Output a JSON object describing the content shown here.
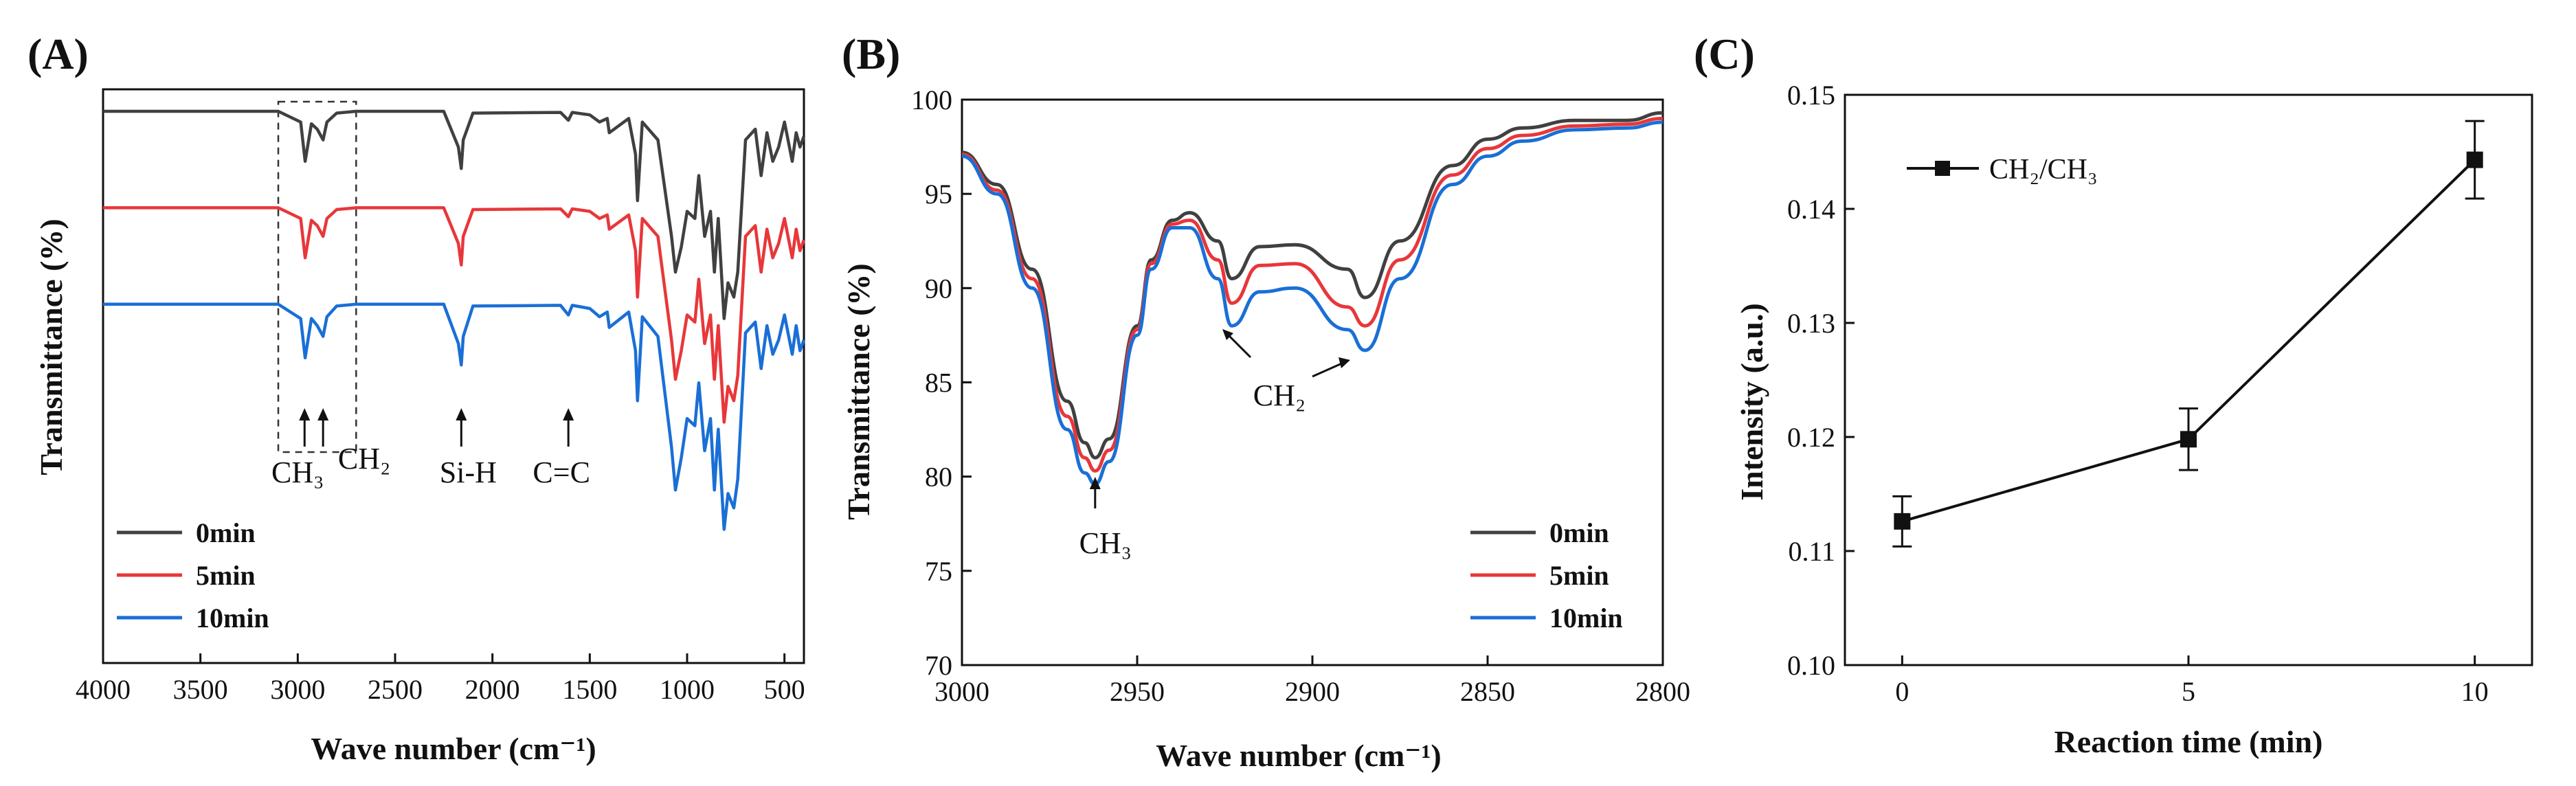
{
  "figure": {
    "panels": [
      "(A)",
      "(B)",
      "(C)"
    ]
  },
  "chart_data": [
    {
      "panel": "(A)",
      "type": "line",
      "title": "",
      "xlabel": "Wave number (cm⁻¹)",
      "ylabel": "Transmittance (%)",
      "xlim": [
        4000,
        400
      ],
      "xticks": [
        4000,
        3500,
        3000,
        2500,
        2000,
        1500,
        1000,
        500
      ],
      "y_ticks_shown": false,
      "legend_position": "bottom-left",
      "colors": [
        "#404040",
        "#e8373a",
        "#1a6fd6"
      ],
      "series": [
        {
          "name": "0min",
          "baseline": 0.0,
          "x": [
            4000,
            3100,
            2985,
            2962,
            2930,
            2900,
            2870,
            2850,
            2800,
            2700,
            2250,
            2175,
            2160,
            2150,
            2100,
            1650,
            1610,
            1590,
            1500,
            1450,
            1410,
            1400,
            1300,
            1265,
            1255,
            1230,
            1150,
            1080,
            1060,
            1030,
            1000,
            960,
            940,
            910,
            880,
            860,
            840,
            810,
            790,
            760,
            740,
            700,
            650,
            620,
            590,
            560,
            530,
            500,
            460,
            440,
            420,
            400
          ],
          "y": [
            0.0,
            0.0,
            -3.0,
            -14.0,
            -3.5,
            -5.0,
            -8.0,
            -3.0,
            -0.5,
            0.0,
            0.0,
            -10.0,
            -16.0,
            -8.0,
            -0.5,
            -0.3,
            -2.5,
            -0.3,
            -1.0,
            -3.0,
            -2.0,
            -6.0,
            -2.0,
            -12.0,
            -25.0,
            -3.0,
            -8.0,
            -35.0,
            -45.0,
            -38.0,
            -28.0,
            -30.0,
            -18.0,
            -35.0,
            -28.0,
            -45.0,
            -30.0,
            -58.0,
            -48.0,
            -52.0,
            -45.0,
            -8.0,
            -5.0,
            -18.0,
            -6.0,
            -14.0,
            -10.0,
            -3.0,
            -14.0,
            -6.0,
            -10.0,
            -7.0
          ]
        },
        {
          "name": "5min",
          "baseline": -27.0,
          "x": [
            4000,
            3100,
            2985,
            2962,
            2930,
            2900,
            2870,
            2850,
            2800,
            2700,
            2250,
            2175,
            2160,
            2150,
            2100,
            1650,
            1610,
            1590,
            1500,
            1450,
            1410,
            1400,
            1300,
            1265,
            1255,
            1230,
            1150,
            1080,
            1060,
            1030,
            1000,
            960,
            940,
            910,
            880,
            860,
            840,
            810,
            790,
            760,
            740,
            700,
            650,
            620,
            590,
            560,
            530,
            500,
            460,
            440,
            420,
            400
          ],
          "y": [
            0.0,
            0.0,
            -3.0,
            -14.0,
            -3.5,
            -5.0,
            -8.0,
            -3.0,
            -0.5,
            0.0,
            0.0,
            -10.0,
            -16.0,
            -8.0,
            -0.5,
            -0.3,
            -2.5,
            -0.3,
            -1.0,
            -3.0,
            -2.0,
            -6.0,
            -2.0,
            -12.0,
            -25.0,
            -3.0,
            -8.0,
            -37.0,
            -48.0,
            -40.0,
            -30.0,
            -32.0,
            -20.0,
            -38.0,
            -30.0,
            -48.0,
            -33.0,
            -60.0,
            -50.0,
            -54.0,
            -47.0,
            -8.0,
            -5.0,
            -18.0,
            -6.0,
            -14.0,
            -10.0,
            -3.0,
            -14.0,
            -6.0,
            -12.0,
            -9.0
          ]
        },
        {
          "name": "10min",
          "baseline": -54.0,
          "x": [
            4000,
            3100,
            2985,
            2962,
            2930,
            2900,
            2870,
            2850,
            2800,
            2700,
            2250,
            2175,
            2160,
            2150,
            2100,
            1650,
            1610,
            1590,
            1500,
            1450,
            1410,
            1400,
            1300,
            1265,
            1255,
            1230,
            1150,
            1080,
            1060,
            1030,
            1000,
            960,
            940,
            910,
            880,
            860,
            840,
            810,
            790,
            760,
            740,
            700,
            650,
            620,
            590,
            560,
            530,
            500,
            460,
            440,
            420,
            400
          ],
          "y": [
            0.0,
            0.0,
            -4.0,
            -15.0,
            -4.0,
            -6.0,
            -9.0,
            -3.5,
            -0.5,
            0.0,
            0.0,
            -11.0,
            -17.0,
            -9.0,
            -0.5,
            -0.3,
            -3.0,
            -0.3,
            -1.2,
            -3.5,
            -2.2,
            -6.5,
            -2.2,
            -13.0,
            -27.0,
            -3.5,
            -9.0,
            -40.0,
            -52.0,
            -43.0,
            -32.0,
            -34.0,
            -22.0,
            -41.0,
            -32.0,
            -52.0,
            -35.0,
            -63.0,
            -53.0,
            -57.0,
            -49.0,
            -8.0,
            -5.0,
            -18.0,
            -6.0,
            -14.0,
            -10.0,
            -3.0,
            -14.0,
            -6.0,
            -13.0,
            -10.0
          ]
        }
      ],
      "annotations": [
        {
          "text": "CH₃",
          "x": 2965
        },
        {
          "text": "CH₂",
          "x": 2870
        },
        {
          "text": "Si-H",
          "x": 2160
        },
        {
          "text": "C=C",
          "x": 1610
        }
      ],
      "highlight_box_x": [
        3100,
        2700
      ]
    },
    {
      "panel": "(B)",
      "type": "line",
      "title": "",
      "xlabel": "Wave number (cm⁻¹)",
      "ylabel": "Transmittance (%)",
      "xlim": [
        3000,
        2800
      ],
      "ylim": [
        70,
        100
      ],
      "xticks": [
        3000,
        2950,
        2900,
        2850,
        2800
      ],
      "yticks": [
        70,
        75,
        80,
        85,
        90,
        95,
        100
      ],
      "legend_position": "bottom-right",
      "colors": [
        "#404040",
        "#e8373a",
        "#1a6fd6"
      ],
      "series": [
        {
          "name": "0min",
          "x": [
            3000,
            2990,
            2980,
            2970,
            2965,
            2962,
            2958,
            2950,
            2946,
            2940,
            2935,
            2927,
            2923,
            2915,
            2905,
            2890,
            2885,
            2875,
            2860,
            2850,
            2840,
            2825,
            2810,
            2800
          ],
          "y": [
            97.2,
            95.5,
            91.0,
            84.0,
            81.8,
            81.0,
            82.0,
            88.0,
            91.5,
            93.6,
            94.0,
            92.5,
            90.5,
            92.2,
            92.3,
            91.0,
            89.5,
            92.5,
            96.5,
            97.9,
            98.5,
            98.9,
            98.9,
            99.3
          ]
        },
        {
          "name": "5min",
          "x": [
            3000,
            2990,
            2980,
            2970,
            2965,
            2962,
            2958,
            2950,
            2946,
            2940,
            2935,
            2927,
            2923,
            2915,
            2905,
            2890,
            2885,
            2875,
            2860,
            2850,
            2840,
            2825,
            2810,
            2800
          ],
          "y": [
            97.1,
            95.2,
            90.5,
            83.2,
            81.0,
            80.3,
            81.4,
            87.8,
            91.3,
            93.4,
            93.6,
            91.5,
            89.2,
            91.2,
            91.3,
            89.0,
            88.0,
            91.5,
            96.0,
            97.4,
            98.1,
            98.6,
            98.7,
            99.0
          ]
        },
        {
          "name": "10min",
          "x": [
            3000,
            2990,
            2980,
            2970,
            2965,
            2962,
            2958,
            2950,
            2946,
            2940,
            2935,
            2927,
            2923,
            2915,
            2905,
            2890,
            2885,
            2875,
            2860,
            2850,
            2840,
            2825,
            2810,
            2800
          ],
          "y": [
            97.0,
            95.0,
            90.0,
            82.5,
            80.2,
            79.6,
            80.8,
            87.5,
            91.0,
            93.2,
            93.2,
            90.5,
            88.0,
            89.8,
            90.0,
            87.8,
            86.7,
            90.5,
            95.5,
            97.0,
            97.8,
            98.4,
            98.5,
            98.8
          ]
        }
      ],
      "annotations": [
        {
          "text": "CH₃",
          "x": 2962
        },
        {
          "text": "CH₂",
          "x": 2900
        }
      ]
    },
    {
      "panel": "(C)",
      "type": "line",
      "title": "",
      "xlabel": "Reaction time (min)",
      "ylabel": "Intensity (a.u.)",
      "xlim": [
        -1,
        11
      ],
      "ylim": [
        0.1,
        0.15
      ],
      "xticks": [
        0,
        5,
        10
      ],
      "yticks": [
        0.1,
        0.11,
        0.12,
        0.13,
        0.14,
        0.15
      ],
      "yticklabels": [
        "0.10",
        "0.11",
        "0.12",
        "0.13",
        "0.14",
        "0.15"
      ],
      "legend_position": "top-left",
      "series": [
        {
          "name": "CH₂/CH₃",
          "x": [
            0,
            5,
            10
          ],
          "y": [
            0.1126,
            0.1198,
            0.1443
          ],
          "yerr": [
            0.0022,
            0.0027,
            0.0034
          ]
        }
      ]
    }
  ]
}
